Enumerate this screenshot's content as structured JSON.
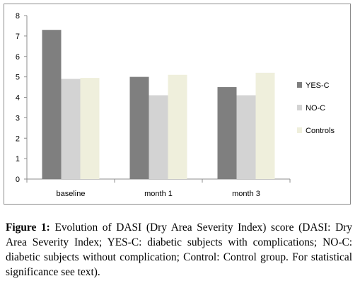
{
  "chart_data": {
    "type": "bar",
    "categories": [
      "baseline",
      "month 1",
      "month 3"
    ],
    "series": [
      {
        "name": "YES-C",
        "values": [
          7.3,
          5.0,
          4.5
        ],
        "color": "#7f7f7f"
      },
      {
        "name": "NO-C",
        "values": [
          4.9,
          4.1,
          4.1
        ],
        "color": "#d3d3d3"
      },
      {
        "name": "Controls",
        "values": [
          4.95,
          5.1,
          5.2
        ],
        "color": "#efefdc"
      }
    ],
    "ylim": [
      0,
      8
    ],
    "yticks": [
      "0",
      "1",
      "2",
      "3",
      "4",
      "5",
      "6",
      "7",
      "8"
    ],
    "grid": false,
    "legend": "right"
  },
  "caption": {
    "label": "Figure 1:",
    "text": "Evolution of DASI (Dry Area Severity Index) score (DASI: Dry Area Severity Index; YES-C: diabetic subjects with complications; NO-C: diabetic subjects without complication; Control: Control group. For statistical significance see text)."
  }
}
